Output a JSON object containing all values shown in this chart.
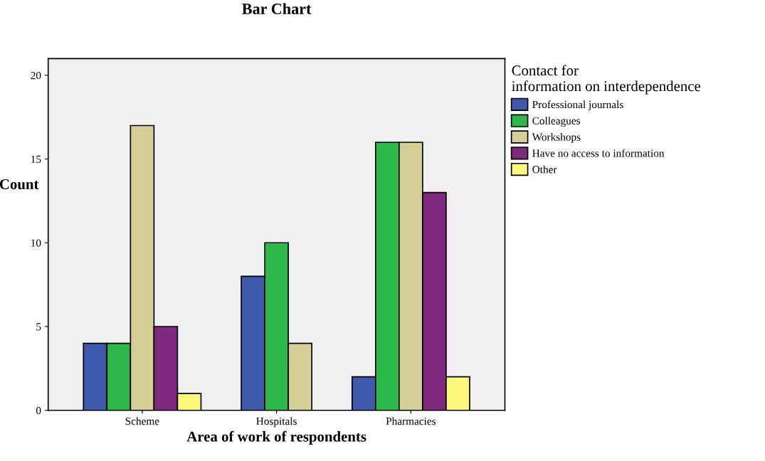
{
  "chart_data": {
    "type": "bar",
    "title": "Bar Chart",
    "xlabel": "Area of work of respondents",
    "ylabel": "Count",
    "legend_title": "Contact for\ninformation on interdependence",
    "categories": [
      "Scheme",
      "Hospitals",
      "Pharmacies"
    ],
    "series": [
      {
        "name": "Professional journals",
        "color": "#3e58ac",
        "values": [
          4,
          8,
          2
        ]
      },
      {
        "name": "Colleagues",
        "color": "#2db84a",
        "values": [
          4,
          10,
          16
        ]
      },
      {
        "name": "Workshops",
        "color": "#d4cf97",
        "values": [
          17,
          4,
          16
        ]
      },
      {
        "name": "Have no access to information",
        "color": "#7f2a7e",
        "values": [
          5,
          null,
          13
        ]
      },
      {
        "name": "Other",
        "color": "#fbf87a",
        "values": [
          1,
          null,
          2
        ]
      }
    ],
    "ylim": [
      0,
      21
    ],
    "yticks": [
      0,
      5,
      10,
      15,
      20
    ],
    "grid": false,
    "legend": "top right"
  }
}
